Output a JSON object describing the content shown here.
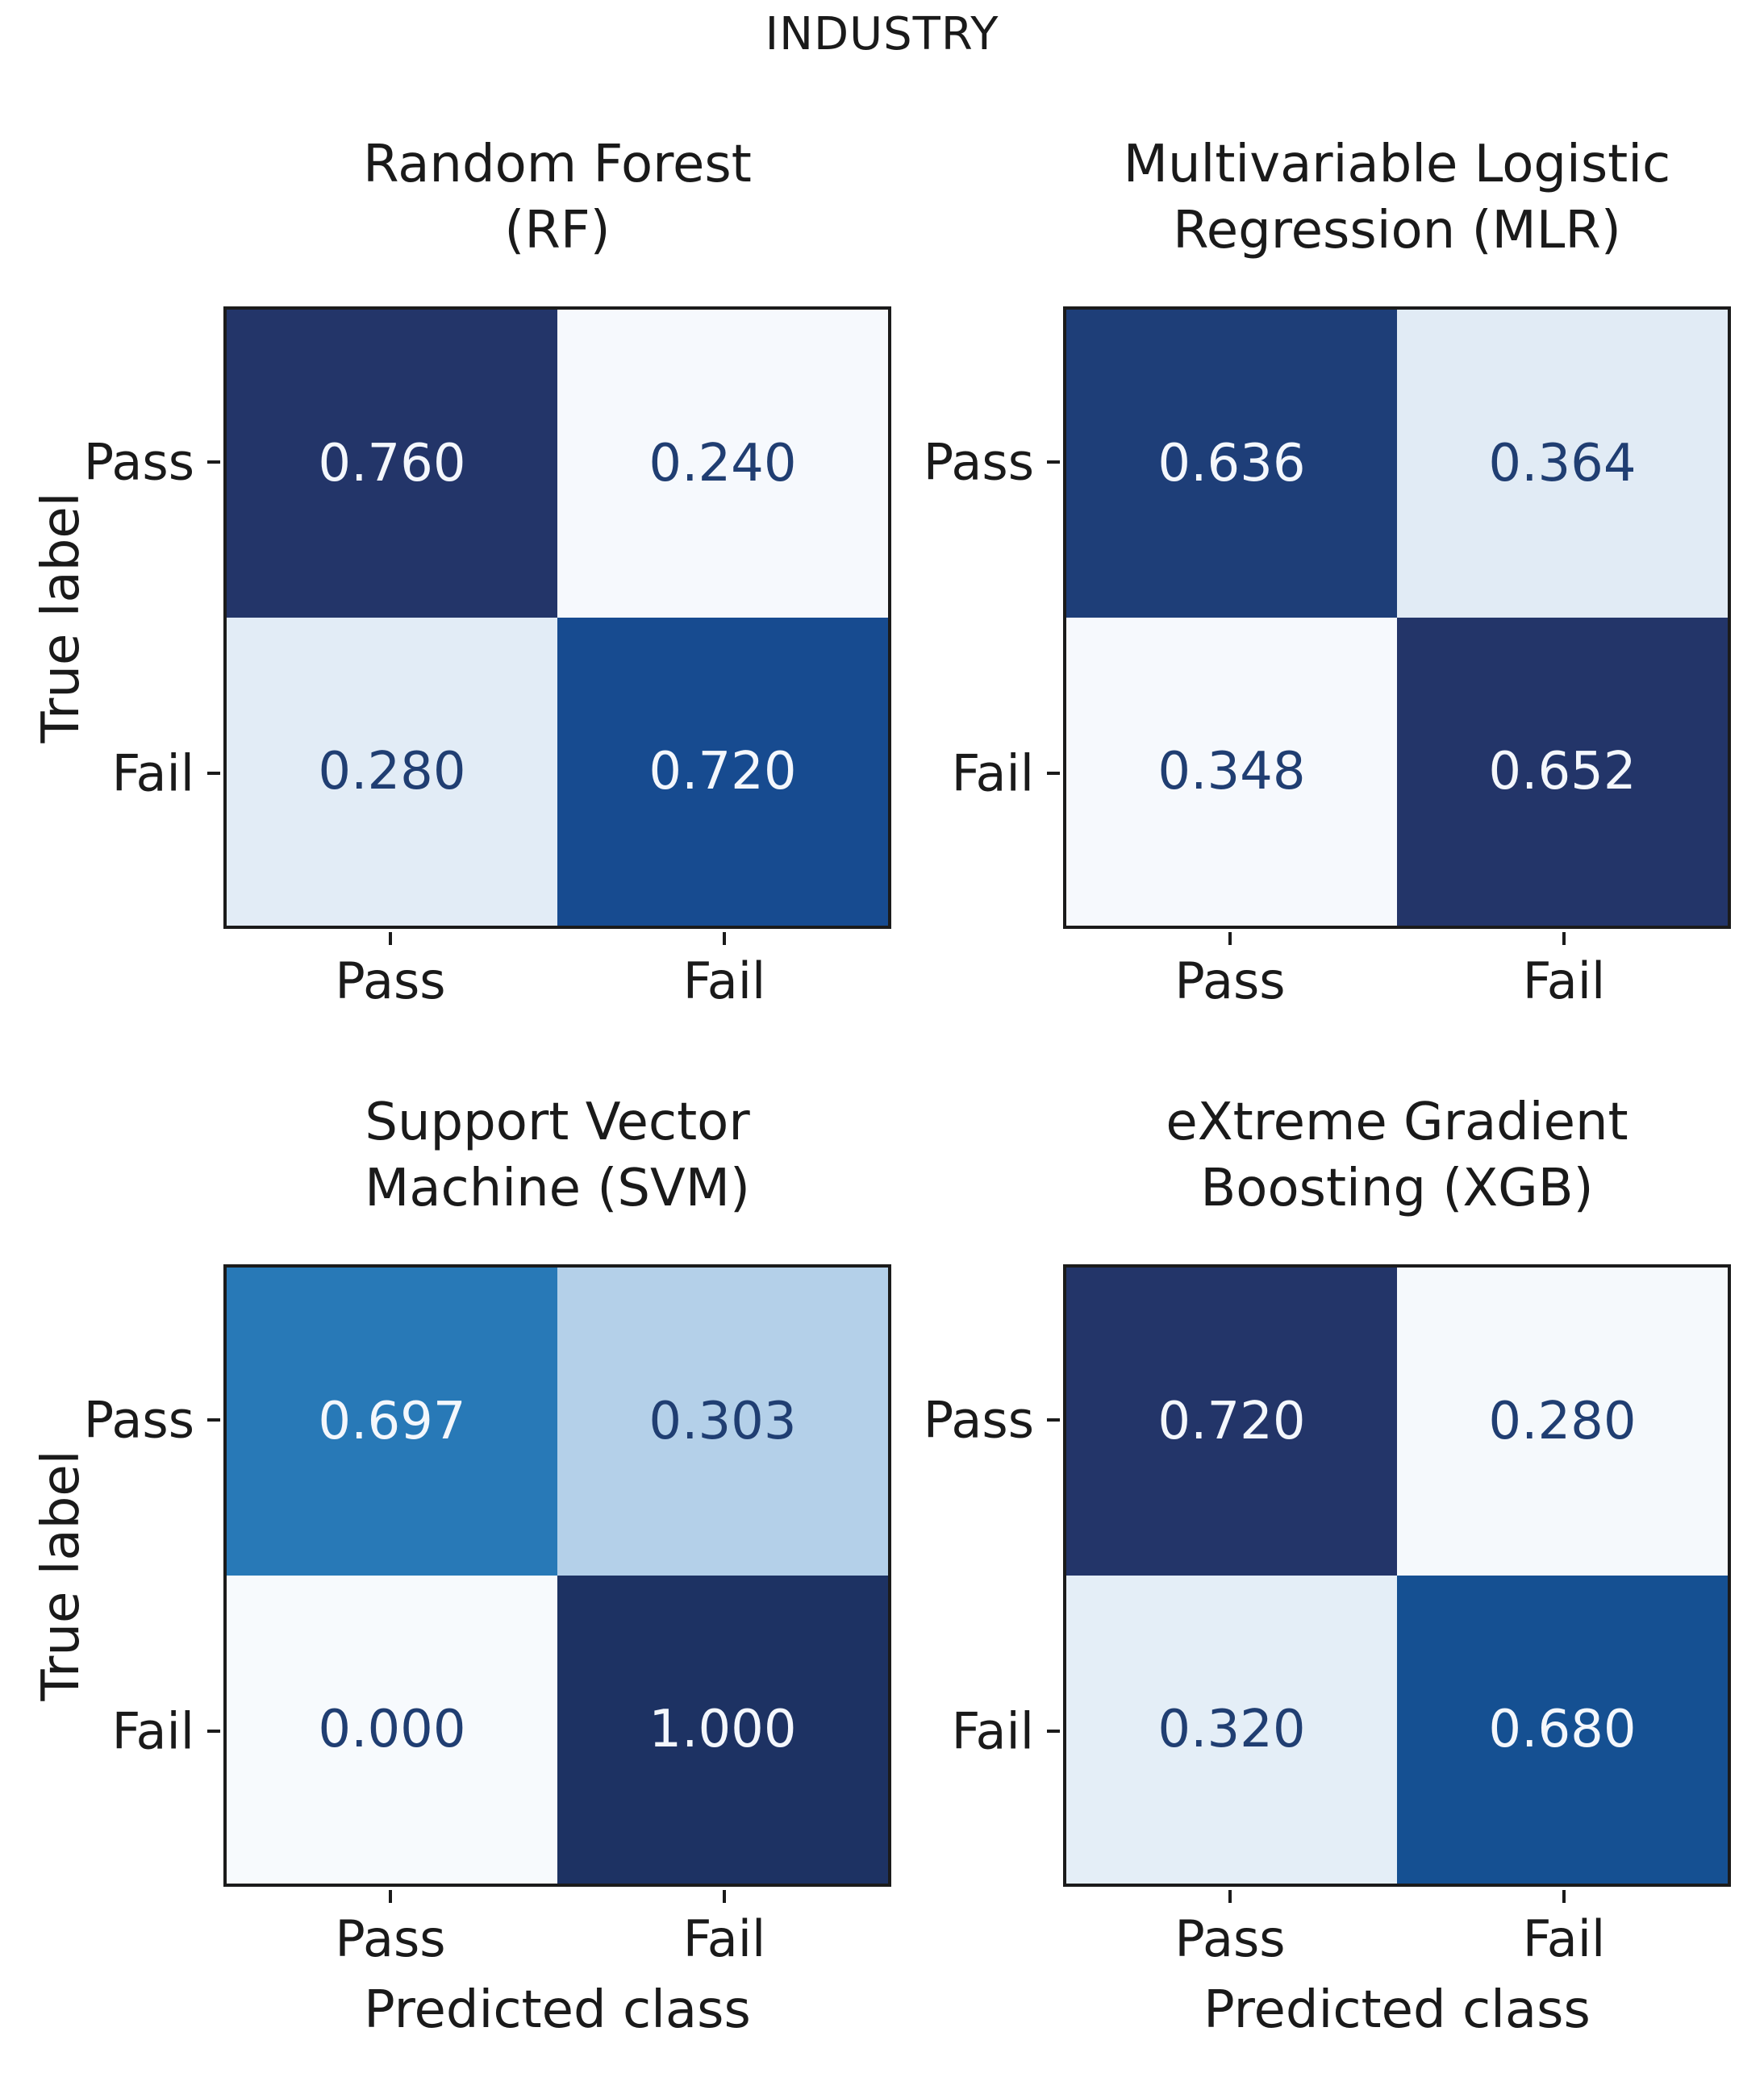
{
  "figure": {
    "title": "INDUSTRY",
    "x_axis_label": "Predicted class",
    "y_axis_label": "True label",
    "background": "#ffffff"
  },
  "colors": {
    "axis_border": "#1b1b1b",
    "tick": "#1b1b1b",
    "title_text": "#1a1a1a",
    "dark_cell_text": "#f4f7fc",
    "light_cell_text": "#203e72"
  },
  "chart_data": {
    "type": "heatmap",
    "colormap": "Blues",
    "title": "INDUSTRY",
    "xlabel": "Predicted class",
    "ylabel": "True label",
    "x_categories": [
      "Pass",
      "Fail"
    ],
    "y_categories": [
      "Pass",
      "Fail"
    ],
    "legend": "none",
    "grid": false,
    "matrices": [
      {
        "id": "RF",
        "title_line1": "Random Forest",
        "title_line2": "(RF)",
        "values": [
          [
            0.76,
            0.24
          ],
          [
            0.28,
            0.72
          ]
        ],
        "cells": [
          {
            "label": "0.760",
            "bg": "#233569",
            "fg": "#f4f7fc"
          },
          {
            "label": "0.240",
            "bg": "#f6f9fd",
            "fg": "#203e72"
          },
          {
            "label": "0.280",
            "bg": "#e2ecf6",
            "fg": "#203e72"
          },
          {
            "label": "0.720",
            "bg": "#174b90",
            "fg": "#f4f7fc"
          }
        ]
      },
      {
        "id": "MLR",
        "title_line1": "Multivariable Logistic",
        "title_line2": "Regression (MLR)",
        "values": [
          [
            0.636,
            0.364
          ],
          [
            0.348,
            0.652
          ]
        ],
        "cells": [
          {
            "label": "0.636",
            "bg": "#1e3e78",
            "fg": "#f4f7fc"
          },
          {
            "label": "0.364",
            "bg": "#e1ebf5",
            "fg": "#203e72"
          },
          {
            "label": "0.348",
            "bg": "#f6f9fd",
            "fg": "#203e72"
          },
          {
            "label": "0.652",
            "bg": "#233569",
            "fg": "#f4f7fc"
          }
        ]
      },
      {
        "id": "SVM",
        "title_line1": "Support Vector",
        "title_line2": "Machine (SVM)",
        "values": [
          [
            0.697,
            0.303
          ],
          [
            0.0,
            1.0
          ]
        ],
        "cells": [
          {
            "label": "0.697",
            "bg": "#2879b7",
            "fg": "#f4f7fc"
          },
          {
            "label": "0.303",
            "bg": "#b4d0e9",
            "fg": "#203e72"
          },
          {
            "label": "0.000",
            "bg": "#f7fafd",
            "fg": "#203e72"
          },
          {
            "label": "1.000",
            "bg": "#1d3263",
            "fg": "#f4f7fc"
          }
        ]
      },
      {
        "id": "XGB",
        "title_line1": "eXtreme Gradient",
        "title_line2": "Boosting (XGB)",
        "values": [
          [
            0.72,
            0.28
          ],
          [
            0.32,
            0.68
          ]
        ],
        "cells": [
          {
            "label": "0.720",
            "bg": "#233569",
            "fg": "#f4f7fc"
          },
          {
            "label": "0.280",
            "bg": "#f5f9fc",
            "fg": "#203e72"
          },
          {
            "label": "0.320",
            "bg": "#e4eef7",
            "fg": "#203e72"
          },
          {
            "label": "0.680",
            "bg": "#155092",
            "fg": "#f4f7fc"
          }
        ]
      }
    ]
  }
}
